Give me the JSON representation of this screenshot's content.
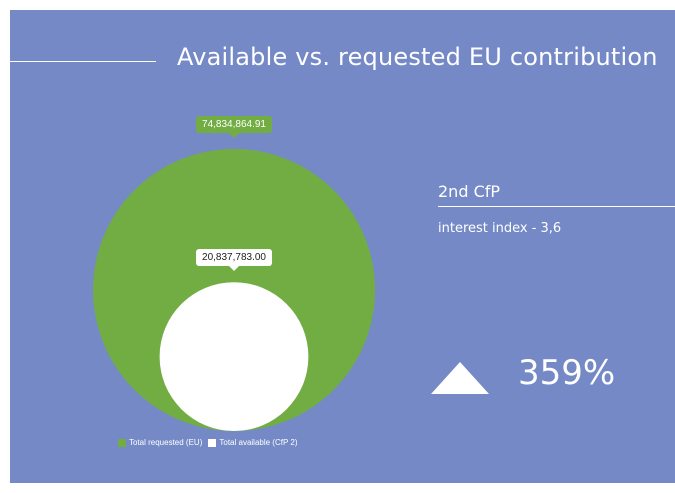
{
  "title": "Available vs. requested EU contribution",
  "chart_data": {
    "type": "pie",
    "variant": "nested-circles",
    "series": [
      {
        "name": "Total requested (EU)",
        "value": 74834864.91,
        "label": "74,834,864.91",
        "color": "#72ad43"
      },
      {
        "name": "Total available (CfP 2)",
        "value": 20837783.0,
        "label": "20,837,783.00",
        "color": "#ffffff"
      }
    ],
    "legend_position": "bottom"
  },
  "stats": {
    "cfp_label": "2nd CfP",
    "interest_index": "interest index - 3,6",
    "percentage": "359%",
    "trend_icon": "up-triangle-icon"
  },
  "colors": {
    "background": "#7489c6",
    "requested": "#72ad43",
    "available": "#ffffff",
    "text": "#ffffff"
  }
}
